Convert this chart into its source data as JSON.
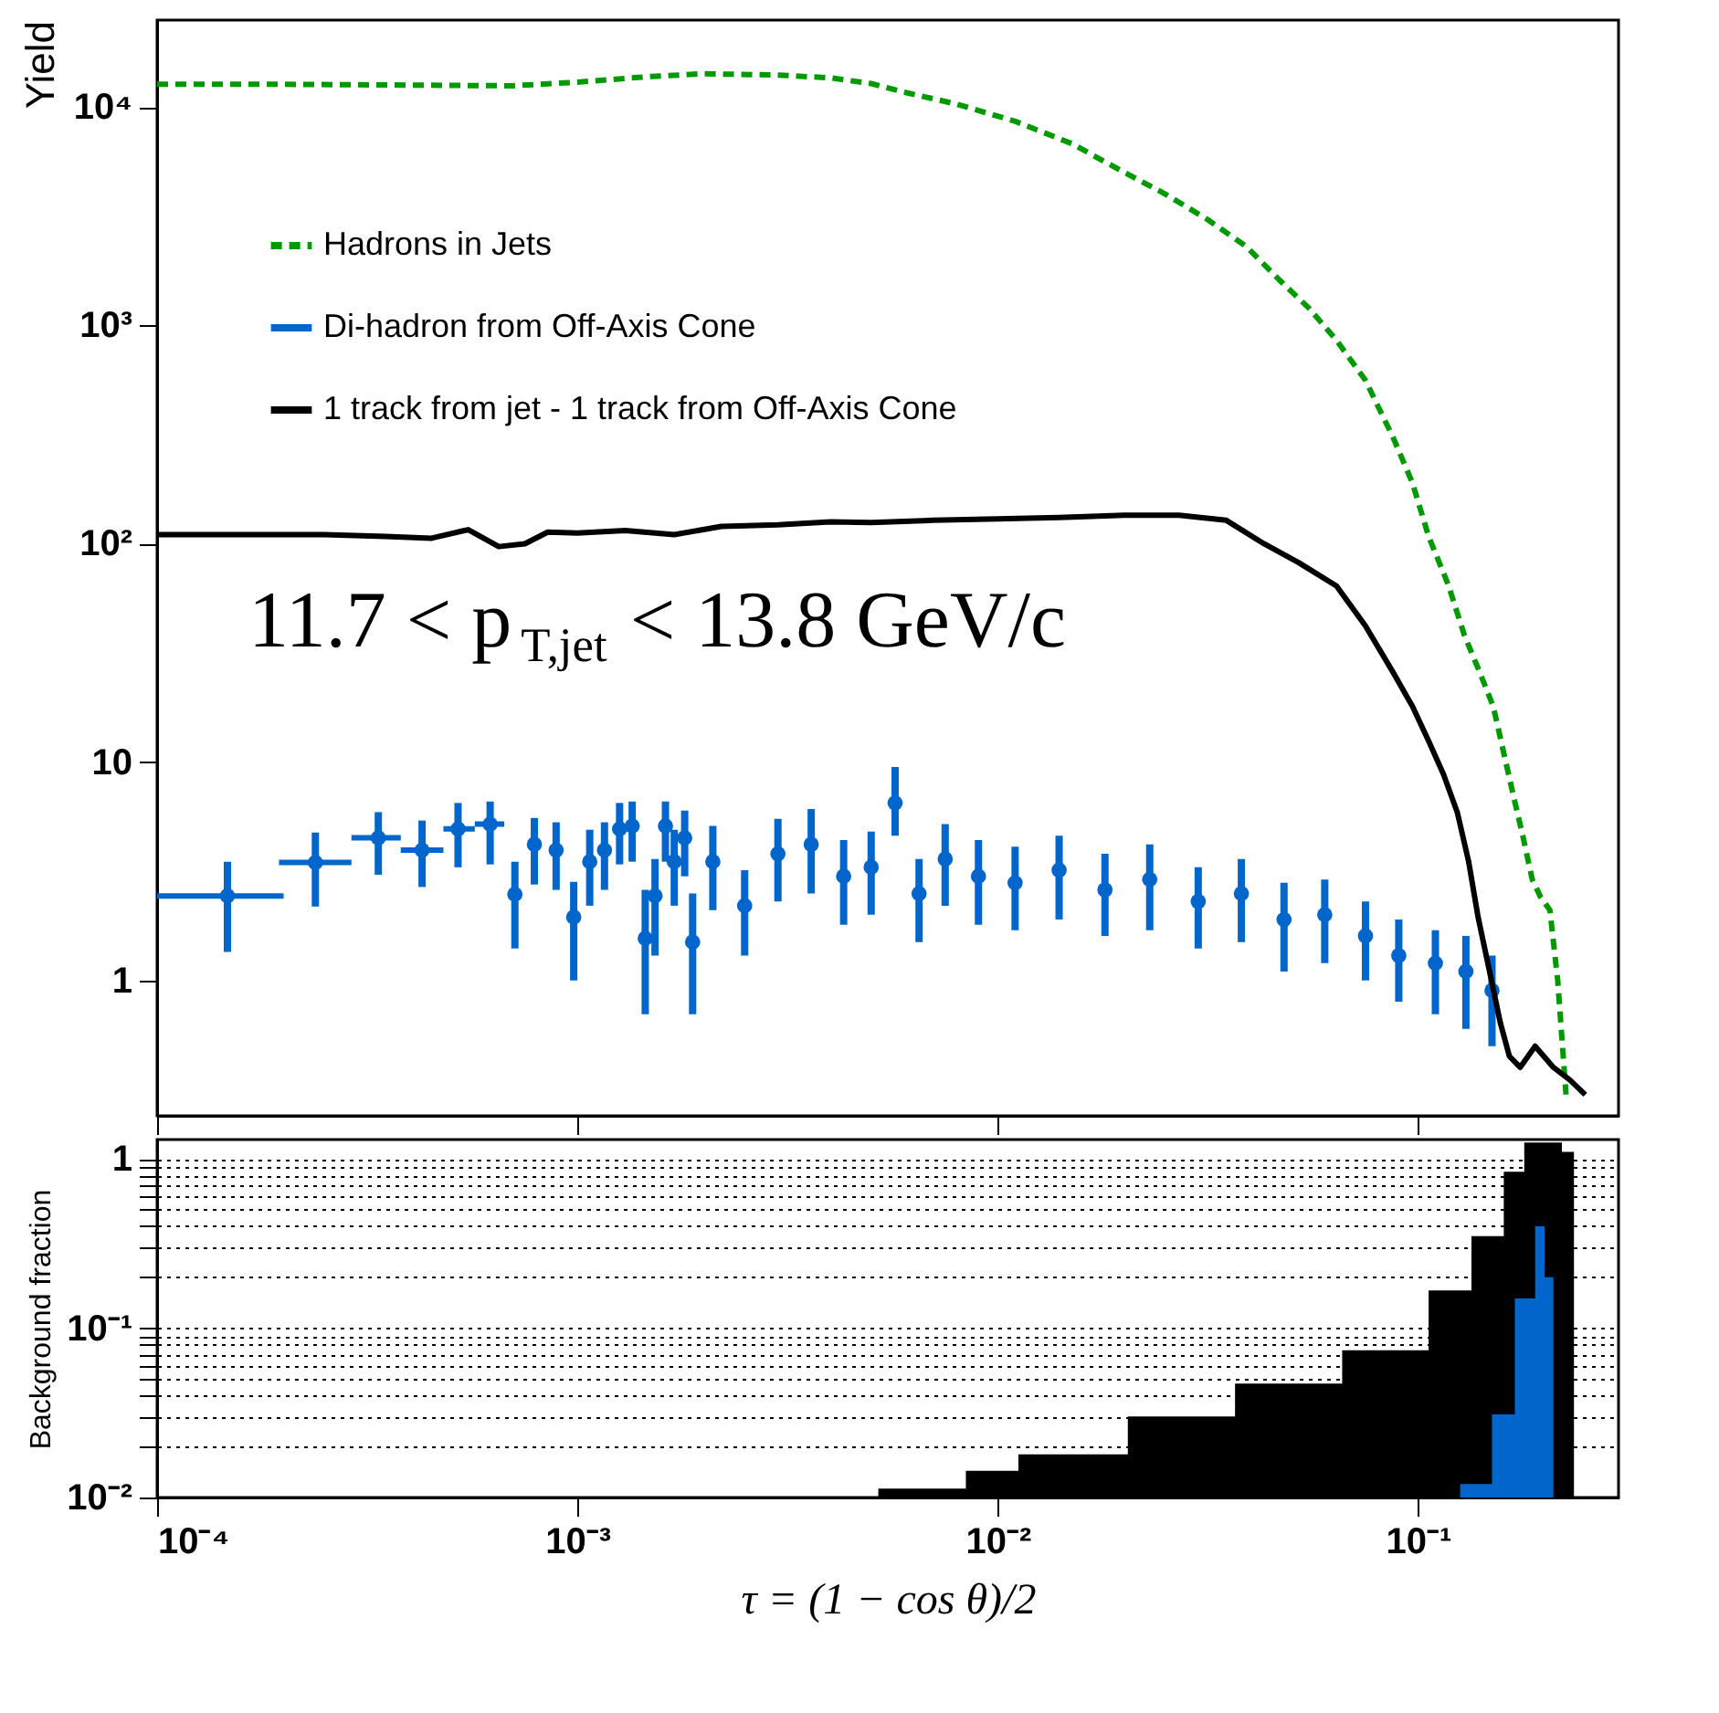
{
  "chart_data": [
    {
      "type": "line",
      "ylabel": "Yield",
      "annotations": [
        "11.7 < p$_{T,jet}$ < 13.8 GeV/c"
      ],
      "xlim": [
        0.0001,
        0.3
      ],
      "ylim": [
        0.24,
        25000
      ],
      "log": "xy",
      "grid": false,
      "legend": "top left",
      "tick_labels": "y",
      "xticks": [
        {
          "value": 0.0001,
          "label": null
        },
        {
          "value": 0.001,
          "label": null
        },
        {
          "value": 0.01,
          "label": null
        },
        {
          "value": 0.1,
          "label": null
        }
      ],
      "yticks": [
        1,
        10,
        {
          "value": 100,
          "label": "10²"
        },
        {
          "value": 1000,
          "label": "10³"
        },
        {
          "value": 10000,
          "label": "10⁴"
        }
      ],
      "series": [
        {
          "name": "Hadrons in Jets",
          "color": "#009900",
          "type": "line",
          "line_style": "dashed",
          "x": [
            0.0001,
            0.0002,
            0.0004,
            0.0007,
            0.001,
            0.0015,
            0.002,
            0.003,
            0.004,
            0.005,
            0.0061,
            0.008,
            0.011,
            0.015,
            0.0197,
            0.025,
            0.0316,
            0.039,
            0.0467,
            0.055,
            0.0638,
            0.075,
            0.0873,
            0.097,
            0.106,
            0.118,
            0.129,
            0.14,
            0.151,
            0.16,
            0.169,
            0.178,
            0.187,
            0.196,
            0.206,
            0.215,
            0.225
          ],
          "values": [
            12700,
            12700,
            12600,
            12500,
            13000,
            13800,
            14200,
            14000,
            13600,
            12800,
            11600,
            10300,
            8600,
            6800,
            5100,
            4000,
            3050,
            2300,
            1620,
            1200,
            860,
            560,
            306,
            190,
            108,
            65,
            38,
            26,
            18,
            11,
            6.9,
            4.5,
            2.9,
            2.4,
            2.1,
            1.0,
            0.3
          ]
        },
        {
          "name": "Di-hadron from Off-Axis Cone",
          "color": "#0066cc",
          "type": "scatter",
          "marker": "circle",
          "x": [
            0.000147,
            0.000238,
            0.000336,
            0.000427,
            0.00052,
            0.00062,
            0.00071,
            0.00079,
            0.00089,
            0.00098,
            0.00107,
            0.00116,
            0.00126,
            0.00135,
            0.00145,
            0.00153,
            0.00162,
            0.0017,
            0.0018,
            0.00188,
            0.0021,
            0.0025,
            0.003,
            0.0036,
            0.0043,
            0.005,
            0.0057,
            0.0065,
            0.0075,
            0.009,
            0.011,
            0.014,
            0.018,
            0.023,
            0.03,
            0.038,
            0.048,
            0.06,
            0.075,
            0.09,
            0.11,
            0.13,
            0.15
          ],
          "values": [
            2.44,
            3.47,
            4.5,
            3.95,
            4.94,
            5.2,
            2.48,
            4.2,
            3.95,
            1.95,
            3.5,
            3.95,
            4.94,
            5.1,
            1.56,
            2.44,
            5.1,
            3.5,
            4.5,
            1.5,
            3.5,
            2.2,
            3.8,
            4.2,
            3.0,
            3.3,
            6.5,
            2.5,
            3.6,
            3.0,
            2.8,
            3.2,
            2.6,
            2.9,
            2.3,
            2.5,
            1.9,
            2.0,
            1.6,
            1.3,
            1.2,
            1.1,
            0.9
          ],
          "errors": [
            [
              1.35,
              3.5
            ],
            [
              2.18,
              4.76
            ],
            [
              3.05,
              5.9
            ],
            [
              2.68,
              5.4
            ],
            [
              3.3,
              6.5
            ],
            [
              3.4,
              6.6
            ],
            [
              1.4,
              3.5
            ],
            [
              2.75,
              5.55
            ],
            [
              2.6,
              5.3
            ],
            [
              1.0,
              2.83
            ],
            [
              2.2,
              4.9
            ],
            [
              2.6,
              5.3
            ],
            [
              3.4,
              6.5
            ],
            [
              3.5,
              6.6
            ],
            [
              0.7,
              2.6
            ],
            [
              1.3,
              3.6
            ],
            [
              3.5,
              6.6
            ],
            [
              2.2,
              4.9
            ],
            [
              3.0,
              6.0
            ],
            [
              0.7,
              2.5
            ],
            [
              2.1,
              5.1
            ],
            [
              1.3,
              3.2
            ],
            [
              2.3,
              5.5
            ],
            [
              2.5,
              6.1
            ],
            [
              1.8,
              4.4
            ],
            [
              2.0,
              4.8
            ],
            [
              4.6,
              9.5
            ],
            [
              1.5,
              3.6
            ],
            [
              2.2,
              5.2
            ],
            [
              1.8,
              4.4
            ],
            [
              1.7,
              4.1
            ],
            [
              1.9,
              4.6
            ],
            [
              1.6,
              3.8
            ],
            [
              1.7,
              4.2
            ],
            [
              1.4,
              3.3
            ],
            [
              1.5,
              3.6
            ],
            [
              1.1,
              2.8
            ],
            [
              1.2,
              2.9
            ],
            [
              1.0,
              2.3
            ],
            [
              0.8,
              1.9
            ],
            [
              0.7,
              1.7
            ],
            [
              0.6,
              1.6
            ],
            [
              0.5,
              1.3
            ]
          ],
          "xerrors": [
            [
              0.0001,
              0.0002
            ],
            [
              0.000195,
              0.00029
            ],
            [
              0.00029,
              0.00038
            ],
            [
              0.00038,
              0.00048
            ],
            [
              0.00048,
              0.00057
            ],
            [
              0.00057,
              0.00067
            ],
            null,
            null,
            null,
            null,
            null,
            null,
            null,
            null,
            null,
            null,
            null,
            null,
            null,
            null,
            null,
            null,
            null,
            null,
            null,
            null,
            null,
            null,
            null,
            null,
            null,
            null,
            null,
            null,
            null,
            null,
            null,
            null,
            null,
            null,
            null,
            null,
            null
          ]
        },
        {
          "name": "1 track from jet - 1 track from Off-Axis Cone",
          "color": "#000000",
          "type": "line",
          "line_style": "solid",
          "x": [
            0.0001,
            0.00015,
            0.00025,
            0.00035,
            0.00045,
            0.00055,
            0.00065,
            0.00075,
            0.00085,
            0.001,
            0.0013,
            0.0017,
            0.0022,
            0.003,
            0.004,
            0.005,
            0.007,
            0.01,
            0.014,
            0.02,
            0.027,
            0.035,
            0.043,
            0.052,
            0.064,
            0.075,
            0.087,
            0.097,
            0.106,
            0.115,
            0.124,
            0.132,
            0.139,
            0.148,
            0.157,
            0.165,
            0.175,
            0.19,
            0.21,
            0.23,
            0.25
          ],
          "values": [
            110,
            110,
            110,
            108,
            106,
            116,
            97,
            100,
            113,
            112,
            115,
            110,
            120,
            122,
            126,
            125,
            128,
            130,
            132,
            135,
            135,
            128,
            100,
            82,
            64,
            42,
            26,
            18,
            12.5,
            8.8,
            5.9,
            3.5,
            1.95,
            1.1,
            0.64,
            0.45,
            0.4,
            0.5,
            0.4,
            0.35,
            0.3
          ]
        }
      ]
    },
    {
      "type": "area",
      "ylabel": "Background fraction",
      "xlabel": "τ = (1 − cos θ)/2",
      "xlim": [
        0.0001,
        0.3
      ],
      "ylim": [
        0.01,
        1.3
      ],
      "log": "xy",
      "grid": "y",
      "xticks": [
        {
          "value": 0.0001,
          "label": "10⁻⁴"
        },
        {
          "value": 0.001,
          "label": "10⁻³"
        },
        {
          "value": 0.01,
          "label": "10⁻²"
        },
        {
          "value": 0.1,
          "label": "10⁻¹"
        }
      ],
      "yticks": [
        {
          "value": 0.01,
          "label": "10⁻²"
        },
        {
          "value": 0.02,
          "label": null
        },
        {
          "value": 0.03,
          "label": null
        },
        {
          "value": 0.04,
          "label": null
        },
        {
          "value": 0.05,
          "label": null
        },
        {
          "value": 0.06,
          "label": null
        },
        {
          "value": 0.07,
          "label": null
        },
        {
          "value": 0.08,
          "label": null
        },
        {
          "value": 0.09,
          "label": null
        },
        {
          "value": 0.1,
          "label": "10⁻¹"
        },
        {
          "value": 0.2,
          "label": null
        },
        {
          "value": 0.3,
          "label": null
        },
        {
          "value": 0.4,
          "label": null
        },
        {
          "value": 0.5,
          "label": null
        },
        {
          "value": 0.6,
          "label": null
        },
        {
          "value": 0.7,
          "label": null
        },
        {
          "value": 0.8,
          "label": null
        },
        {
          "value": 0.9,
          "label": null
        },
        1
      ],
      "series": [
        {
          "color": "#000000",
          "x": [
            0.0001,
            0.005,
            0.0052,
            0.0084,
            0.0112,
            0.0204,
            0.0367,
            0.066,
            0.106,
            0.134,
            0.16,
            0.179,
            0.2,
            0.22,
            0.235
          ],
          "values": [
            0.01,
            0.01,
            0.0113,
            0.0144,
            0.018,
            0.0301,
            0.047,
            0.074,
            0.167,
            0.35,
            0.84,
            1.25,
            1.25,
            1.1,
            0.01
          ]
        },
        {
          "color": "#0066cc",
          "x": [
            0.0001,
            0.12,
            0.126,
            0.15,
            0.17,
            0.19,
            0.2,
            0.21
          ],
          "values": [
            0.01,
            0.01,
            0.012,
            0.031,
            0.15,
            0.4,
            0.2,
            0.01
          ]
        }
      ]
    }
  ]
}
